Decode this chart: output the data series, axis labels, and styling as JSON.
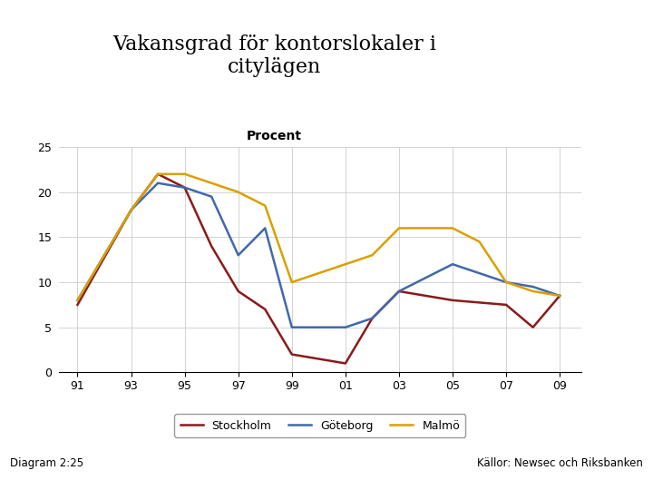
{
  "title": "Vakansgrad för kontorslokaler i\ncitylägen",
  "subtitle": "Procent",
  "footnote_left": "Diagram 2:25",
  "footnote_right": "Källor: Newsec och Riksbanken",
  "color_stockholm": "#8B1A1A",
  "color_goteborg": "#4169AA",
  "color_malmo": "#DAA000",
  "ylim": [
    0,
    25
  ],
  "yticks": [
    0,
    5,
    10,
    15,
    20,
    25
  ],
  "logo_bg": "#1A4A8A",
  "footer_bg": "#1A4A8A",
  "stockholm_x": [
    1991,
    1993,
    1994,
    1995,
    1996,
    1997,
    1998,
    1999,
    2001,
    2002,
    2003,
    2005,
    2007,
    2008,
    2009
  ],
  "stockholm_y": [
    7.5,
    18,
    22,
    20.5,
    14,
    9,
    7,
    2,
    1,
    6,
    9,
    8,
    7.5,
    5,
    8.5
  ],
  "goteborg_x": [
    1991,
    1993,
    1994,
    1995,
    1996,
    1997,
    1998,
    1999,
    2001,
    2002,
    2003,
    2005,
    2007,
    2008,
    2009
  ],
  "goteborg_y": [
    8,
    18,
    21,
    20.5,
    19.5,
    13,
    16,
    5,
    5,
    6,
    9,
    12,
    10,
    9.5,
    8.5
  ],
  "malmo_x": [
    1991,
    1993,
    1994,
    1995,
    1997,
    1998,
    1999,
    2002,
    2003,
    2005,
    2006,
    2007,
    2008,
    2009
  ],
  "malmo_y": [
    8,
    18,
    22,
    22,
    20,
    18.5,
    10,
    13,
    16,
    16,
    14.5,
    10,
    9,
    8.5
  ],
  "xtick_positions": [
    1991,
    1993,
    1995,
    1997,
    1999,
    2001,
    2003,
    2005,
    2007,
    2009
  ],
  "xtick_labels": [
    "91",
    "93",
    "95",
    "97",
    "99",
    "01",
    "03",
    "05",
    "07",
    "09"
  ]
}
